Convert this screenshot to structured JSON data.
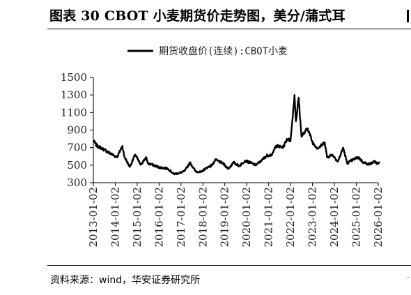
{
  "figure": {
    "title": "图表 30 CBOT 小麦期货价走势图，美分/蒲式耳",
    "source": "资料来源：wind，华安证券研究所"
  },
  "chart_data": {
    "type": "line",
    "title": "",
    "xlabel": "",
    "ylabel": "",
    "ylim": [
      300,
      1500
    ],
    "yticks": [
      300,
      500,
      700,
      900,
      1100,
      1300,
      1500
    ],
    "xticks": [
      "2013-01-02",
      "2014-01-02",
      "2015-01-02",
      "2016-01-02",
      "2017-01-02",
      "2018-01-02",
      "2019-01-02",
      "2020-01-02",
      "2021-01-02",
      "2022-01-02",
      "2023-01-02",
      "2024-01-02",
      "2025-01-02",
      "2026-01-02"
    ],
    "xlim": [
      "2013-01-02",
      "2026-01-02"
    ],
    "grid": false,
    "legend": "top-center",
    "line_color": "#000000",
    "series": [
      {
        "name": "期货收盘价(连续):CBOT小麦",
        "points": [
          [
            "2013-01-02",
            780
          ],
          [
            "2013-03-01",
            720
          ],
          [
            "2013-06-01",
            690
          ],
          [
            "2013-09-01",
            650
          ],
          [
            "2013-12-01",
            615
          ],
          [
            "2014-02-01",
            590
          ],
          [
            "2014-05-01",
            720
          ],
          [
            "2014-06-01",
            600
          ],
          [
            "2014-09-01",
            480
          ],
          [
            "2014-12-01",
            620
          ],
          [
            "2015-03-01",
            505
          ],
          [
            "2015-06-01",
            590
          ],
          [
            "2015-07-01",
            520
          ],
          [
            "2015-10-01",
            500
          ],
          [
            "2016-01-02",
            475
          ],
          [
            "2016-03-01",
            470
          ],
          [
            "2016-06-01",
            460
          ],
          [
            "2016-09-01",
            400
          ],
          [
            "2016-12-01",
            410
          ],
          [
            "2017-03-01",
            430
          ],
          [
            "2017-06-01",
            530
          ],
          [
            "2017-09-01",
            430
          ],
          [
            "2017-12-01",
            420
          ],
          [
            "2018-03-01",
            470
          ],
          [
            "2018-06-01",
            500
          ],
          [
            "2018-08-01",
            560
          ],
          [
            "2018-12-01",
            520
          ],
          [
            "2019-03-01",
            460
          ],
          [
            "2019-06-01",
            530
          ],
          [
            "2019-09-01",
            490
          ],
          [
            "2019-12-01",
            550
          ],
          [
            "2020-03-01",
            530
          ],
          [
            "2020-06-01",
            500
          ],
          [
            "2020-09-01",
            550
          ],
          [
            "2020-12-01",
            610
          ],
          [
            "2021-03-01",
            620
          ],
          [
            "2021-05-01",
            720
          ],
          [
            "2021-09-01",
            700
          ],
          [
            "2021-11-01",
            800
          ],
          [
            "2022-01-02",
            780
          ],
          [
            "2022-03-08",
            1300
          ],
          [
            "2022-04-01",
            1000
          ],
          [
            "2022-05-17",
            1270
          ],
          [
            "2022-07-01",
            830
          ],
          [
            "2022-09-01",
            880
          ],
          [
            "2022-10-15",
            920
          ],
          [
            "2023-01-02",
            760
          ],
          [
            "2023-04-01",
            690
          ],
          [
            "2023-07-25",
            760
          ],
          [
            "2023-09-01",
            590
          ],
          [
            "2023-12-01",
            620
          ],
          [
            "2024-03-01",
            540
          ],
          [
            "2024-05-28",
            700
          ],
          [
            "2024-08-01",
            520
          ],
          [
            "2024-11-01",
            560
          ],
          [
            "2025-02-01",
            590
          ],
          [
            "2025-05-01",
            530
          ],
          [
            "2025-08-01",
            510
          ],
          [
            "2025-11-01",
            540
          ],
          [
            "2026-01-02",
            515
          ],
          [
            "2026-02-01",
            530
          ]
        ]
      }
    ]
  }
}
